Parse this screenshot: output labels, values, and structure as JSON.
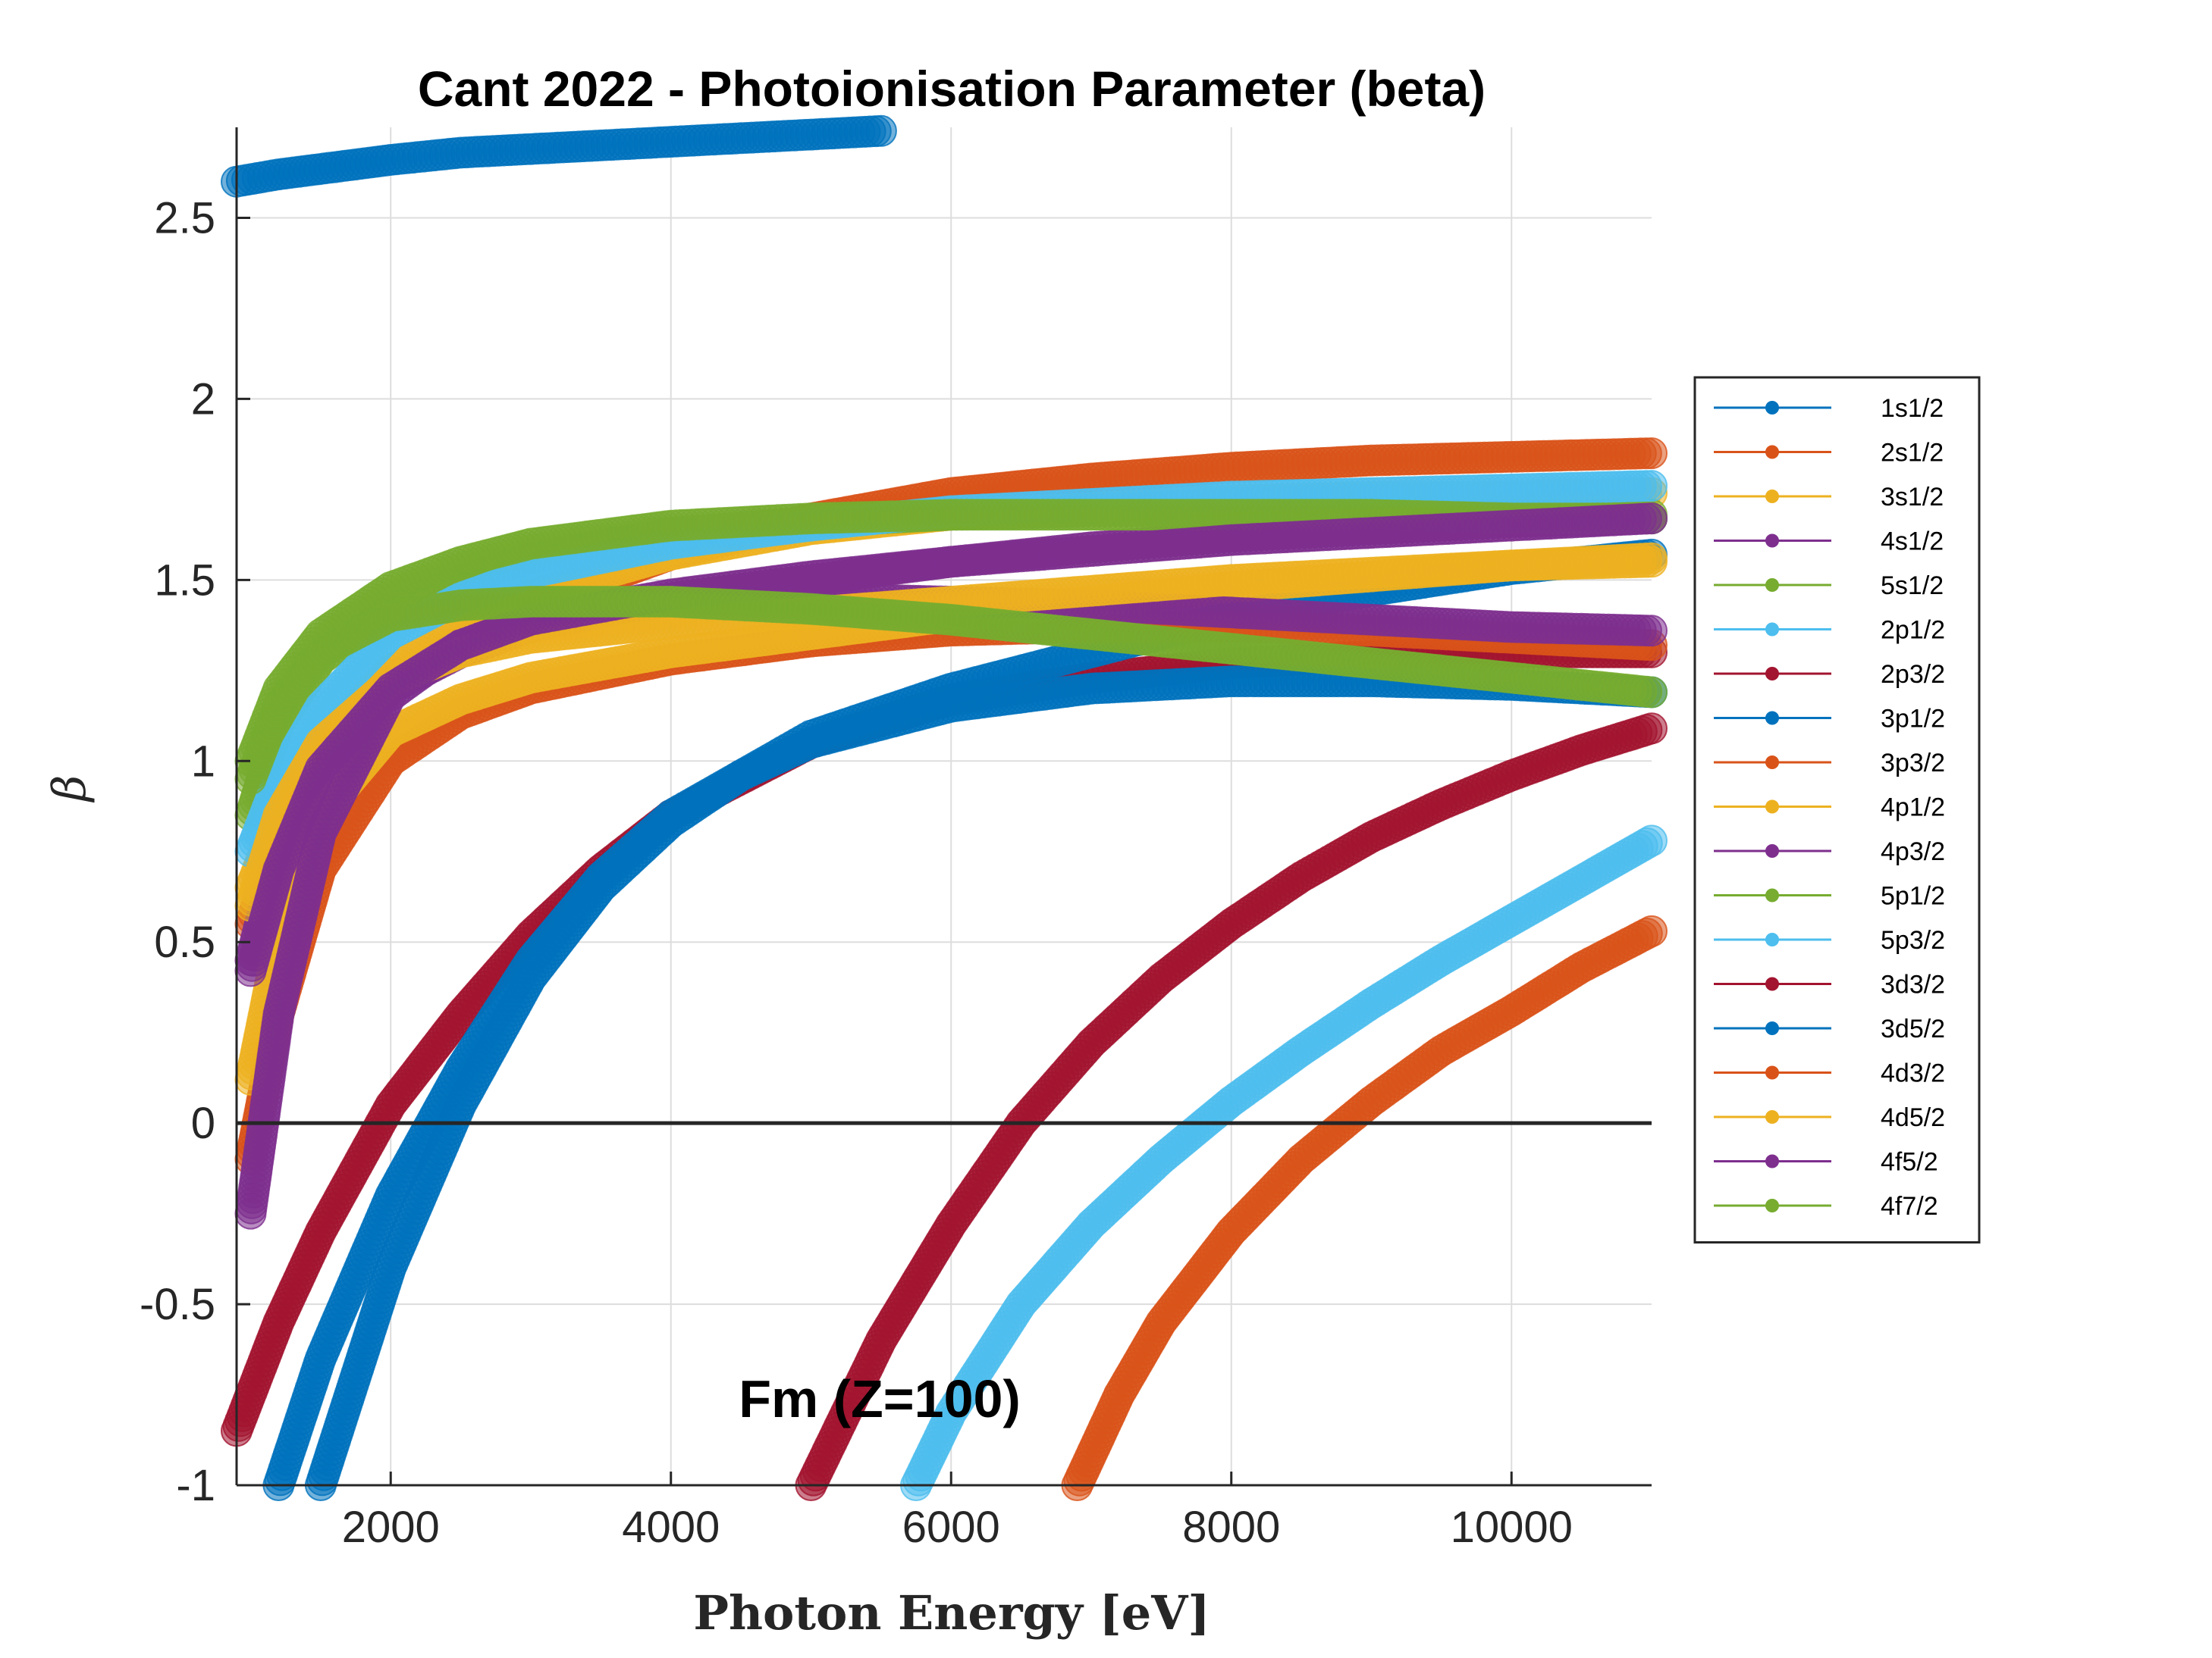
{
  "chart_data": {
    "type": "scatter",
    "title": "Cant 2022 - Photoionisation Parameter (beta)",
    "xlabel": "Photon Energy [eV]",
    "ylabel": "β",
    "annotation": "Fm (Z=100)",
    "xlim": [
      900,
      11000
    ],
    "ylim": [
      -1,
      2.75
    ],
    "xticks": [
      2000,
      4000,
      6000,
      8000,
      10000
    ],
    "xtick_labels": [
      "2000",
      "4000",
      "6000",
      "8000",
      "10000"
    ],
    "yticks": [
      -1,
      -0.5,
      0,
      0.5,
      1,
      1.5,
      2,
      2.5
    ],
    "ytick_labels": [
      "-1",
      "-0.5",
      "0",
      "0.5",
      "1",
      "1.5",
      "2",
      "2.5"
    ],
    "grid": true,
    "zero_line": true,
    "legend_position": "right-outside",
    "series": [
      {
        "name": "1s1/2",
        "color": "#0072BD",
        "x": [
          900,
          1200,
          1600,
          2000,
          2500,
          3000,
          3500,
          4000,
          4500,
          5000,
          5500
        ],
        "y": [
          2.6,
          2.62,
          2.64,
          2.66,
          2.68,
          2.69,
          2.7,
          2.71,
          2.72,
          2.73,
          2.74
        ]
      },
      {
        "name": "2s1/2",
        "color": "#D95319",
        "x": [
          1000,
          1200,
          1500,
          2000,
          2500,
          3000,
          4000,
          5000,
          6000,
          7000,
          8000,
          9000,
          10000,
          11000
        ],
        "y": [
          0.55,
          0.8,
          1.0,
          1.2,
          1.33,
          1.43,
          1.57,
          1.67,
          1.74,
          1.78,
          1.81,
          1.83,
          1.84,
          1.85
        ]
      },
      {
        "name": "3s1/2",
        "color": "#EDB120",
        "x": [
          1000,
          1200,
          1500,
          2000,
          2500,
          3000,
          4000,
          5000,
          6000,
          7000,
          8000,
          9000,
          10000,
          11000
        ],
        "y": [
          0.65,
          0.85,
          1.05,
          1.25,
          1.37,
          1.46,
          1.57,
          1.64,
          1.68,
          1.7,
          1.72,
          1.73,
          1.73,
          1.74
        ]
      },
      {
        "name": "4s1/2",
        "color": "#7E2F8E",
        "x": [
          1000,
          1200,
          1500,
          2000,
          2500,
          3000,
          4000,
          5000,
          6000,
          7000,
          8000,
          9000,
          10000,
          11000
        ],
        "y": [
          0.45,
          0.75,
          1.0,
          1.2,
          1.3,
          1.37,
          1.45,
          1.5,
          1.55,
          1.59,
          1.62,
          1.64,
          1.66,
          1.67
        ]
      },
      {
        "name": "5s1/2",
        "color": "#77AC30",
        "x": [
          1000,
          1200,
          1500,
          2000,
          2500,
          3000,
          4000,
          5000,
          6000,
          7000,
          8000,
          9000,
          10000,
          11000
        ],
        "y": [
          0.85,
          1.1,
          1.28,
          1.42,
          1.5,
          1.56,
          1.63,
          1.66,
          1.68,
          1.69,
          1.69,
          1.69,
          1.68,
          1.68
        ]
      },
      {
        "name": "2p1/2",
        "color": "#4DBEEE",
        "x": [
          1000,
          1200,
          1500,
          2000,
          2500,
          3000,
          4000,
          5000,
          6000,
          7000,
          8000,
          9000,
          10000,
          11000
        ],
        "y": [
          0.75,
          0.95,
          1.15,
          1.35,
          1.45,
          1.52,
          1.6,
          1.65,
          1.69,
          1.71,
          1.73,
          1.74,
          1.75,
          1.76
        ]
      },
      {
        "name": "2p3/2",
        "color": "#A2142F",
        "x": [
          900,
          1200,
          1500,
          2000,
          2500,
          3000,
          3500,
          4000,
          5000,
          6000,
          7000,
          8000,
          9000,
          10000,
          11000
        ],
        "y": [
          -0.85,
          -0.55,
          -0.3,
          0.05,
          0.3,
          0.52,
          0.7,
          0.85,
          1.05,
          1.17,
          1.23,
          1.27,
          1.29,
          1.3,
          1.3
        ]
      },
      {
        "name": "3p1/2",
        "color": "#0072BD",
        "x": [
          1200,
          1500,
          2000,
          2500,
          3000,
          3500,
          4000,
          5000,
          6000,
          7000,
          8000,
          9000,
          10000,
          11000
        ],
        "y": [
          -1.0,
          -0.65,
          -0.2,
          0.15,
          0.45,
          0.68,
          0.85,
          1.07,
          1.2,
          1.3,
          1.4,
          1.47,
          1.53,
          1.57
        ]
      },
      {
        "name": "3p3/2",
        "color": "#D95319",
        "x": [
          1000,
          1200,
          1500,
          2000,
          2500,
          3000,
          4000,
          5000,
          6000,
          7000,
          8000,
          9000,
          10000,
          11000
        ],
        "y": [
          -0.1,
          0.3,
          0.7,
          1.0,
          1.13,
          1.2,
          1.28,
          1.33,
          1.36,
          1.37,
          1.37,
          1.36,
          1.34,
          1.32
        ]
      },
      {
        "name": "4p1/2",
        "color": "#EDB120",
        "x": [
          1000,
          1200,
          1500,
          2000,
          2500,
          3000,
          4000,
          5000,
          6000,
          7000,
          8000,
          9000,
          10000,
          11000
        ],
        "y": [
          0.12,
          0.5,
          0.85,
          1.08,
          1.17,
          1.23,
          1.3,
          1.35,
          1.4,
          1.44,
          1.48,
          1.51,
          1.54,
          1.56
        ]
      },
      {
        "name": "4p3/2",
        "color": "#7E2F8E",
        "x": [
          1000,
          1200,
          1500,
          2000,
          2500,
          3000,
          4000,
          5000,
          6000,
          7000,
          8000,
          9000,
          10000,
          11000
        ],
        "y": [
          -0.25,
          0.3,
          0.8,
          1.18,
          1.32,
          1.39,
          1.44,
          1.45,
          1.44,
          1.43,
          1.41,
          1.39,
          1.37,
          1.36
        ]
      },
      {
        "name": "5p1/2",
        "color": "#77AC30",
        "x": [
          1000,
          1200,
          1500,
          2000,
          2500,
          3000,
          4000,
          5000,
          6000,
          7000,
          8000,
          9000,
          10000,
          11000
        ],
        "y": [
          1.0,
          1.2,
          1.35,
          1.48,
          1.55,
          1.6,
          1.65,
          1.67,
          1.68,
          1.68,
          1.68,
          1.68,
          1.67,
          1.67
        ]
      },
      {
        "name": "5p3/2",
        "color": "#4DBEEE",
        "x": [
          5750,
          6000,
          6500,
          7000,
          7500,
          8000,
          8500,
          9000,
          9500,
          10000,
          10500,
          11000
        ],
        "y": [
          -1.0,
          -0.8,
          -0.5,
          -0.28,
          -0.1,
          0.06,
          0.2,
          0.33,
          0.45,
          0.56,
          0.67,
          0.78
        ]
      },
      {
        "name": "3d3/2",
        "color": "#A2142F",
        "x": [
          5000,
          5500,
          6000,
          6500,
          7000,
          7500,
          8000,
          8500,
          9000,
          9500,
          10000,
          10500,
          11000
        ],
        "y": [
          -1.0,
          -0.6,
          -0.28,
          0.0,
          0.22,
          0.4,
          0.55,
          0.68,
          0.79,
          0.88,
          0.96,
          1.03,
          1.09
        ]
      },
      {
        "name": "3d5/2",
        "color": "#0072BD",
        "x": [
          1500,
          2000,
          2500,
          3000,
          3500,
          4000,
          4500,
          5000,
          6000,
          7000,
          8000,
          9000,
          10000,
          11000
        ],
        "y": [
          -1.0,
          -0.4,
          0.05,
          0.4,
          0.65,
          0.83,
          0.96,
          1.05,
          1.15,
          1.2,
          1.22,
          1.22,
          1.21,
          1.19
        ]
      },
      {
        "name": "4d3/2",
        "color": "#D95319",
        "x": [
          6900,
          7200,
          7500,
          8000,
          8500,
          9000,
          9500,
          10000,
          10500,
          11000
        ],
        "y": [
          -1.0,
          -0.75,
          -0.55,
          -0.3,
          -0.1,
          0.06,
          0.2,
          0.31,
          0.43,
          0.53
        ]
      },
      {
        "name": "4d5/2",
        "color": "#EDB120",
        "x": [
          1000,
          1200,
          1500,
          2000,
          2500,
          3000,
          4000,
          5000,
          6000,
          7000,
          8000,
          9000,
          10000,
          11000
        ],
        "y": [
          0.6,
          0.85,
          1.05,
          1.22,
          1.3,
          1.34,
          1.38,
          1.41,
          1.44,
          1.47,
          1.5,
          1.52,
          1.54,
          1.55
        ]
      },
      {
        "name": "4f5/2",
        "color": "#7E2F8E",
        "x": [
          1000,
          1200,
          1500,
          2000,
          2500,
          3000,
          4000,
          5000,
          6000,
          7000,
          8000,
          9000,
          10000,
          11000
        ],
        "y": [
          0.42,
          0.7,
          0.98,
          1.2,
          1.32,
          1.39,
          1.46,
          1.51,
          1.55,
          1.58,
          1.61,
          1.63,
          1.65,
          1.67
        ]
      },
      {
        "name": "4f7/2",
        "color": "#77AC30",
        "x": [
          1000,
          1200,
          1500,
          2000,
          2500,
          3000,
          4000,
          5000,
          6000,
          7000,
          8000,
          9000,
          10000,
          11000
        ],
        "y": [
          0.95,
          1.15,
          1.3,
          1.4,
          1.43,
          1.44,
          1.44,
          1.42,
          1.39,
          1.35,
          1.31,
          1.27,
          1.23,
          1.19
        ]
      }
    ]
  }
}
